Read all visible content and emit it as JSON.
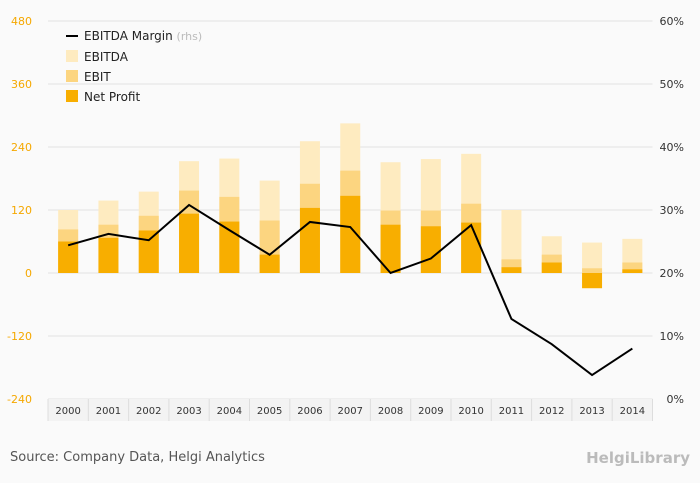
{
  "chart_data": {
    "type": "bar",
    "title": "",
    "categories": [
      "2000",
      "2001",
      "2002",
      "2003",
      "2004",
      "2005",
      "2006",
      "2007",
      "2008",
      "2009",
      "2010",
      "2011",
      "2012",
      "2013",
      "2014"
    ],
    "series": [
      {
        "name": "EBITDA",
        "axis": "left",
        "color": "#feebc0",
        "values": [
          120,
          138,
          155,
          213,
          218,
          176,
          251,
          285,
          211,
          217,
          227,
          120,
          70,
          58,
          65
        ]
      },
      {
        "name": "EBIT",
        "axis": "left",
        "color": "#fcd580",
        "values": [
          83,
          92,
          109,
          157,
          145,
          100,
          170,
          195,
          119,
          119,
          132,
          26,
          35,
          9,
          20
        ]
      },
      {
        "name": "Net Profit",
        "axis": "left",
        "color": "#f8ae00",
        "values": [
          60,
          67,
          81,
          113,
          98,
          35,
          124,
          147,
          92,
          89,
          96,
          11,
          20,
          -29,
          7
        ]
      },
      {
        "name": "EBITDA Margin",
        "axis": "right",
        "type": "line",
        "color": "#000000",
        "values": [
          24.4,
          26.2,
          25.2,
          30.8,
          26.8,
          22.9,
          28.1,
          27.3,
          20.0,
          22.3,
          27.6,
          12.7,
          8.7,
          3.8,
          8.0
        ]
      }
    ],
    "ylim_left": [
      -240,
      480
    ],
    "yticks_left": [
      "480",
      "360",
      "240",
      "120",
      "0",
      "-120",
      "-240"
    ],
    "ylim_right": [
      0,
      60
    ],
    "yticks_right": [
      "60%",
      "50%",
      "40%",
      "30%",
      "20%",
      "10%",
      "0%"
    ],
    "legend": {
      "placement": "top-left",
      "entries": [
        "EBITDA Margin",
        "EBITDA",
        "EBIT",
        "Net Profit"
      ],
      "rhs_note": "(rhs)"
    },
    "grid": true
  },
  "footer": {
    "source": "Source: Company Data, Helgi Analytics",
    "logo": "HelgiLibrary"
  }
}
